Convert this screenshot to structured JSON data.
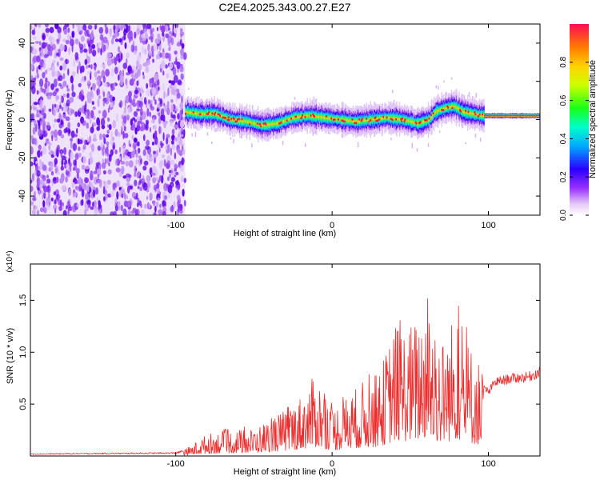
{
  "title": "C2E4.2025.343.00.27.E27",
  "chart_data": [
    {
      "type": "heatmap",
      "name": "spectrogram",
      "title": "C2E4.2025.343.00.27.E27",
      "xlabel": "Height of straight line (km)",
      "ylabel": "Frequency (Hz)",
      "xlim": [
        -193,
        133
      ],
      "ylim": [
        -50,
        50
      ],
      "xticks": [
        -100,
        0,
        100
      ],
      "yticks": [
        -40,
        -20,
        0,
        20,
        40
      ],
      "noise_region_x": [
        -193,
        -94
      ],
      "signal_region_x": [
        -94,
        133
      ],
      "signal_center_freq": [
        [
          -94,
          4
        ],
        [
          -85,
          3
        ],
        [
          -75,
          3
        ],
        [
          -65,
          0
        ],
        [
          -55,
          -1
        ],
        [
          -45,
          -3
        ],
        [
          -35,
          -2
        ],
        [
          -25,
          1
        ],
        [
          -15,
          2
        ],
        [
          -5,
          1
        ],
        [
          5,
          0
        ],
        [
          15,
          -1
        ],
        [
          25,
          0
        ],
        [
          35,
          1
        ],
        [
          45,
          0
        ],
        [
          55,
          -2
        ],
        [
          62,
          0
        ],
        [
          66,
          4
        ],
        [
          72,
          6
        ],
        [
          78,
          7
        ],
        [
          84,
          4
        ],
        [
          90,
          3
        ],
        [
          97,
          2
        ],
        [
          110,
          2
        ],
        [
          133,
          2
        ]
      ],
      "colorbar": {
        "label": "Normalized spectral amplitude",
        "range": [
          0,
          1
        ],
        "ticks": [
          "0.0",
          "0.2",
          "0.4",
          "0.6",
          "0.8"
        ],
        "tick_values": [
          0,
          0.2,
          0.4,
          0.6,
          0.8
        ]
      }
    },
    {
      "type": "line",
      "name": "snr",
      "xlabel": "Height of straight line (km)",
      "ylabel": "SNR (10 * v/v)",
      "y_multiplier": "(x10⁴)",
      "xlim": [
        -193,
        133
      ],
      "ylim": [
        0,
        1.85
      ],
      "xticks": [
        -100,
        0,
        100
      ],
      "yticks": [
        "0.5",
        "1.0",
        "1.5"
      ],
      "ytick_values": [
        0.5,
        1.0,
        1.5
      ],
      "color": "#ee2a2a",
      "series": [
        {
          "name": "SNR",
          "envelope": [
            [
              -193,
              0.02
            ],
            [
              -100,
              0.03
            ],
            [
              -95,
              0.05
            ],
            [
              -90,
              0.1
            ],
            [
              -80,
              0.2
            ],
            [
              -70,
              0.23
            ],
            [
              -50,
              0.25
            ],
            [
              -30,
              0.42
            ],
            [
              -20,
              0.55
            ],
            [
              -10,
              0.75
            ],
            [
              0,
              0.45
            ],
            [
              10,
              0.55
            ],
            [
              20,
              0.68
            ],
            [
              30,
              0.75
            ],
            [
              40,
              1.2
            ],
            [
              50,
              1.2
            ],
            [
              55,
              1.25
            ],
            [
              60,
              1.45
            ],
            [
              70,
              1.05
            ],
            [
              80,
              1.35
            ],
            [
              87,
              1.05
            ],
            [
              93,
              0.95
            ],
            [
              96,
              0.7
            ],
            [
              100,
              0.62
            ],
            [
              104,
              0.72
            ],
            [
              115,
              0.76
            ],
            [
              125,
              0.77
            ],
            [
              133,
              0.82
            ]
          ]
        }
      ]
    }
  ]
}
